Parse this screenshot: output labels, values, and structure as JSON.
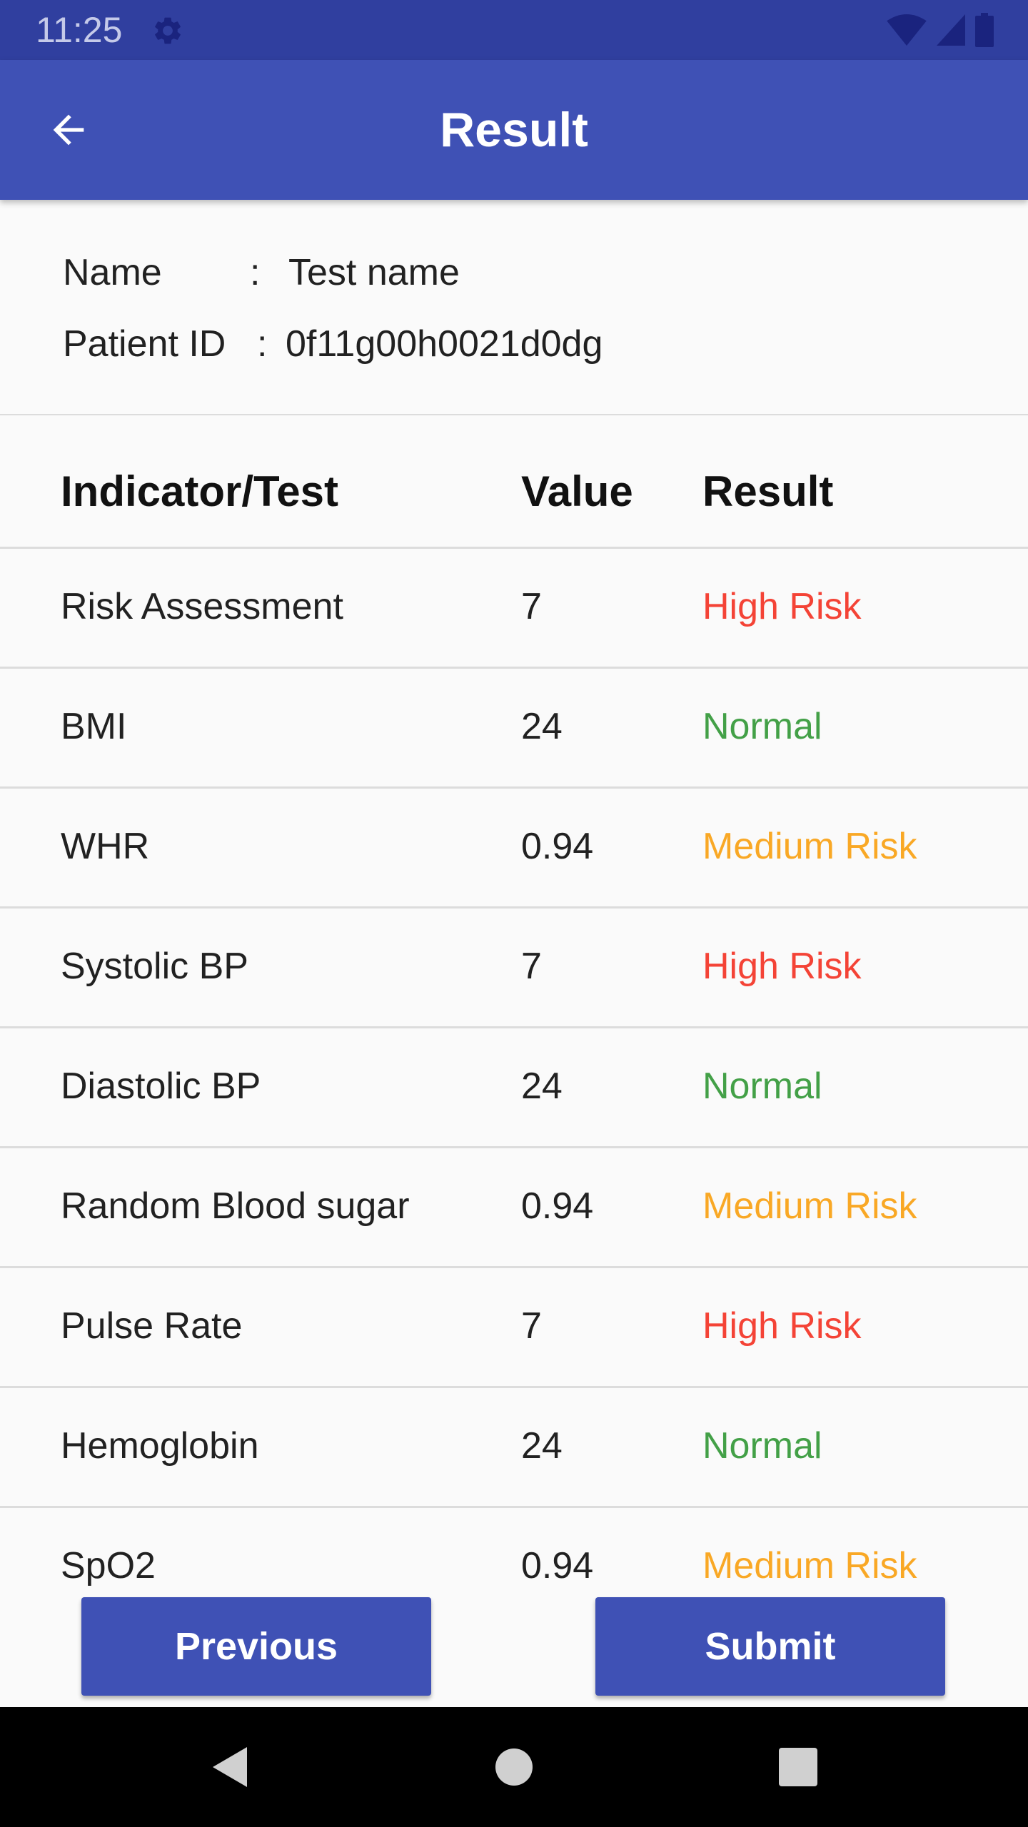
{
  "status_bar": {
    "time": "11:25",
    "icons": [
      "gear-icon",
      "wifi-icon",
      "signal-icon",
      "battery-icon"
    ],
    "background": "#303f9f"
  },
  "app_bar": {
    "title": "Result",
    "back_icon": "arrow-back-icon",
    "background": "#3f51b5"
  },
  "patient": {
    "name_label": "Name",
    "name_colon": ":",
    "name_value": "Test name",
    "id_label": "Patient ID",
    "id_colon": ":",
    "id_value": "0f11g00h0021d0dg"
  },
  "table": {
    "headers": [
      "Indicator/Test",
      "Value",
      "Result"
    ],
    "rows": [
      {
        "indicator": "Risk Assessment",
        "value": "7",
        "result": "High Risk",
        "status": "high"
      },
      {
        "indicator": "BMI",
        "value": "24",
        "result": "Normal",
        "status": "normal"
      },
      {
        "indicator": "WHR",
        "value": "0.94",
        "result": "Medium Risk",
        "status": "medium"
      },
      {
        "indicator": "Systolic BP",
        "value": "7",
        "result": "High Risk",
        "status": "high"
      },
      {
        "indicator": "Diastolic BP",
        "value": "24",
        "result": "Normal",
        "status": "normal"
      },
      {
        "indicator": "Random Blood sugar",
        "value": "0.94",
        "result": "Medium Risk",
        "status": "medium"
      },
      {
        "indicator": "Pulse Rate",
        "value": "7",
        "result": "High Risk",
        "status": "high"
      },
      {
        "indicator": "Hemoglobin",
        "value": "24",
        "result": "Normal",
        "status": "normal"
      },
      {
        "indicator": "SpO2",
        "value": "0.94",
        "result": "Medium Risk",
        "status": "medium"
      }
    ],
    "status_colors": {
      "high": "#f44336",
      "normal": "#43a047",
      "medium": "#f9a825"
    }
  },
  "actions": {
    "previous_label": "Previous",
    "submit_label": "Submit"
  },
  "nav_bar": {
    "icons": [
      "nav-back-icon",
      "nav-home-icon",
      "nav-recents-icon"
    ]
  }
}
